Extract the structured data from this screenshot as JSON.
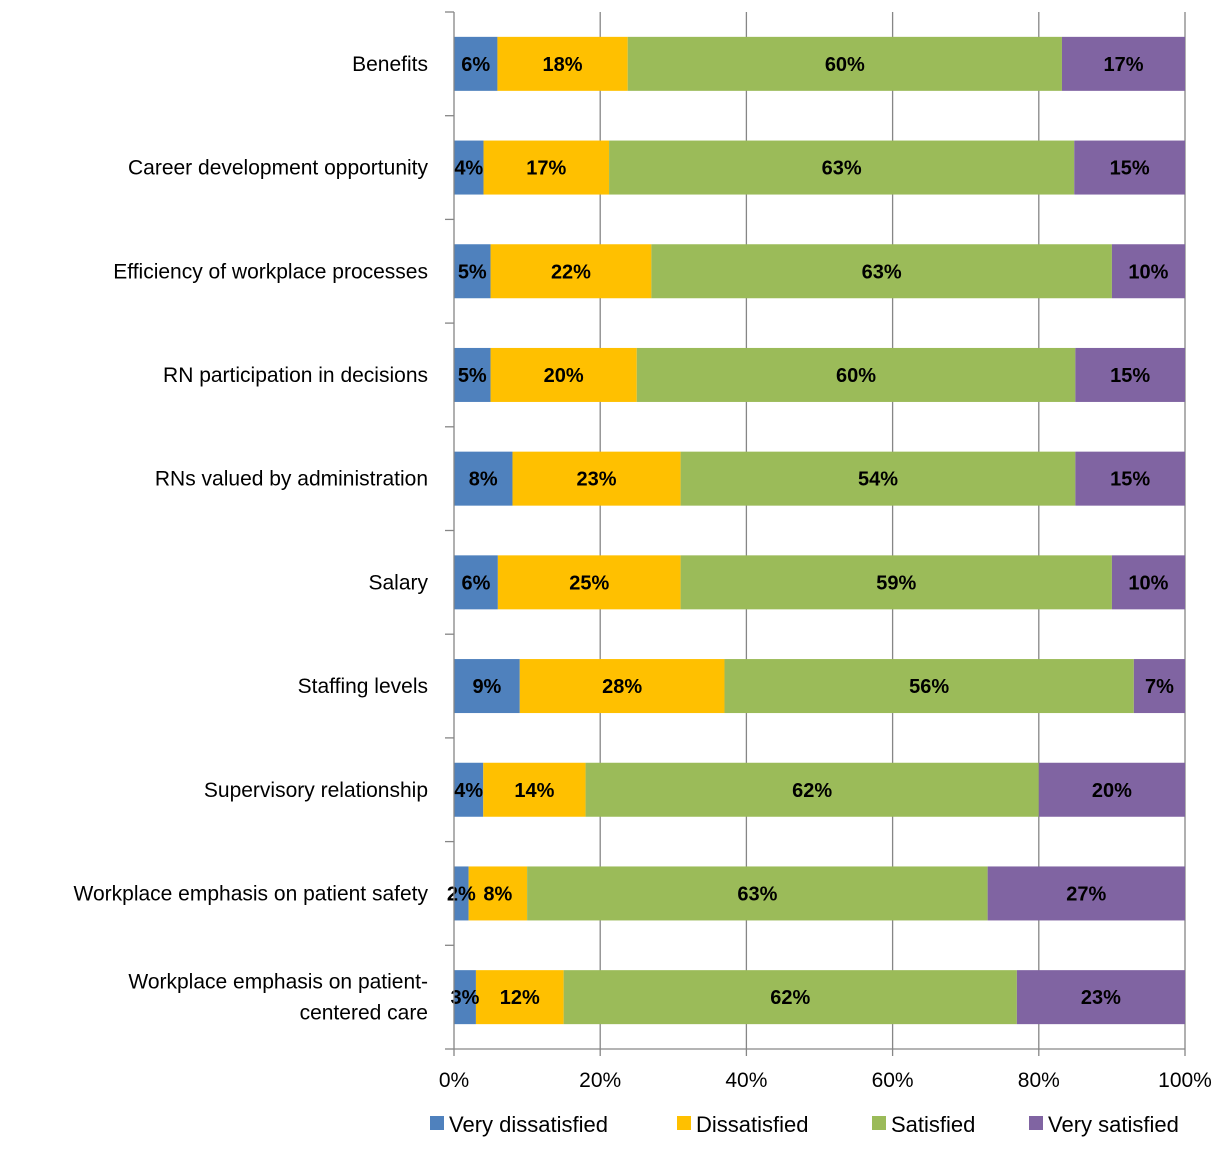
{
  "chart_data": {
    "type": "bar",
    "orientation": "horizontal",
    "stacked": true,
    "percent_stacked": true,
    "title": "",
    "xlabel": "",
    "ylabel": "",
    "xlim": [
      0,
      100
    ],
    "grid": true,
    "legend_position": "bottom",
    "categories": [
      [
        "Benefits"
      ],
      [
        "Career development opportunity"
      ],
      [
        "Efficiency of workplace processes"
      ],
      [
        "RN participation in decisions"
      ],
      [
        "RNs valued by administration"
      ],
      [
        "Salary"
      ],
      [
        "Staffing levels"
      ],
      [
        "Supervisory relationship"
      ],
      [
        "Workplace emphasis on patient safety"
      ],
      [
        "Workplace emphasis on patient-",
        "centered care"
      ]
    ],
    "x_ticks": [
      "0%",
      "20%",
      "40%",
      "60%",
      "80%",
      "100%"
    ],
    "series": [
      {
        "name": "Very dissatisfied",
        "color": "#4F81BD",
        "values": [
          6,
          4,
          5,
          5,
          8,
          6,
          9,
          4,
          2,
          3
        ],
        "labels": [
          "6%",
          "4%",
          "5%",
          "5%",
          "8%",
          "6%",
          "9%",
          "4%",
          "2%",
          "3%"
        ]
      },
      {
        "name": "Dissatisfied",
        "color": "#FFC000",
        "values": [
          18,
          17,
          22,
          20,
          23,
          25,
          28,
          14,
          8,
          12
        ],
        "labels": [
          "18%",
          "17%",
          "22%",
          "20%",
          "23%",
          "25%",
          "28%",
          "14%",
          "8%",
          "12%"
        ]
      },
      {
        "name": "Satisfied",
        "color": "#9BBB59",
        "values": [
          60,
          63,
          63,
          60,
          54,
          59,
          56,
          62,
          63,
          62
        ],
        "labels": [
          "60%",
          "63%",
          "63%",
          "60%",
          "54%",
          "59%",
          "56%",
          "62%",
          "63%",
          "62%"
        ]
      },
      {
        "name": "Very satisfied",
        "color": "#8064A2",
        "values": [
          17,
          15,
          10,
          15,
          15,
          10,
          7,
          20,
          27,
          23
        ],
        "labels": [
          "17%",
          "15%",
          "10%",
          "15%",
          "15%",
          "10%",
          "7%",
          "20%",
          "27%",
          "23%"
        ]
      }
    ]
  }
}
